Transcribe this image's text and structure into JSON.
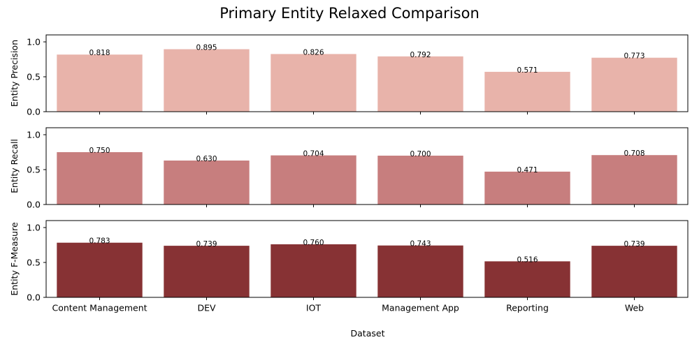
{
  "chart_data": {
    "type": "bar",
    "title": "Primary Entity Relaxed Comparison",
    "xlabel": "Dataset",
    "categories": [
      "Content Management",
      "DEV",
      "IOT",
      "Management App",
      "Reporting",
      "Web"
    ],
    "ylim": [
      0,
      1.1
    ],
    "yticks": [
      "0.0",
      "0.5",
      "1.0"
    ],
    "grid": false,
    "panels": [
      {
        "ylabel": "Entity Precision",
        "color": "#e8b3aa",
        "values": [
          0.818,
          0.895,
          0.826,
          0.792,
          0.571,
          0.773
        ],
        "labels": [
          "0.818",
          "0.895",
          "0.826",
          "0.792",
          "0.571",
          "0.773"
        ]
      },
      {
        "ylabel": "Entity Recall",
        "color": "#c77e7e",
        "values": [
          0.75,
          0.63,
          0.704,
          0.7,
          0.471,
          0.708
        ],
        "labels": [
          "0.750",
          "0.630",
          "0.704",
          "0.700",
          "0.471",
          "0.708"
        ]
      },
      {
        "ylabel": "Entity F-Measure",
        "color": "#873234",
        "values": [
          0.783,
          0.739,
          0.76,
          0.743,
          0.516,
          0.739
        ],
        "labels": [
          "0.783",
          "0.739",
          "0.760",
          "0.743",
          "0.516",
          "0.739"
        ]
      }
    ]
  }
}
